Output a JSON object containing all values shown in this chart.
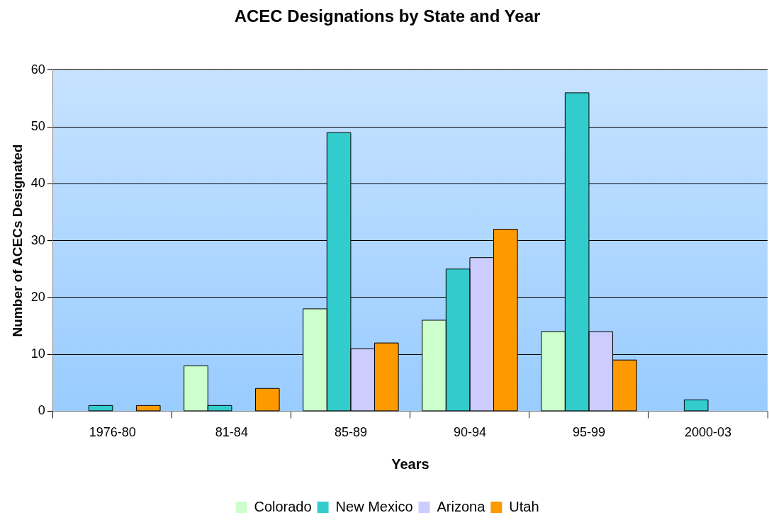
{
  "chart_data": {
    "type": "bar",
    "title": "ACEC Designations by State and Year",
    "xlabel": "Years",
    "ylabel": "Number of ACECs Designated",
    "categories": [
      "1976-80",
      "81-84",
      "85-89",
      "90-94",
      "95-99",
      "2000-03"
    ],
    "series": [
      {
        "name": "Colorado",
        "color": "#ccffcc",
        "values": [
          0,
          8,
          18,
          16,
          14,
          0
        ]
      },
      {
        "name": "New Mexico",
        "color": "#33cccc",
        "values": [
          1,
          1,
          49,
          25,
          56,
          2
        ]
      },
      {
        "name": "Arizona",
        "color": "#ccccff",
        "values": [
          0,
          0,
          11,
          27,
          14,
          0
        ]
      },
      {
        "name": "Utah",
        "color": "#ff9900",
        "values": [
          1,
          4,
          12,
          32,
          9,
          0
        ]
      }
    ],
    "ylim": [
      0,
      60
    ],
    "yticks": [
      0,
      10,
      20,
      30,
      40,
      50,
      60
    ],
    "grid": "y",
    "legend": "bottom"
  }
}
